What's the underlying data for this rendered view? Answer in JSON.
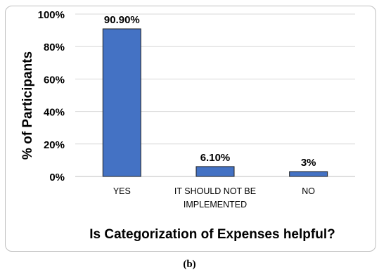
{
  "chart_data": {
    "type": "bar",
    "categories": [
      [
        "YES"
      ],
      [
        "IT SHOULD NOT BE",
        "IMPLEMENTED"
      ],
      [
        "NO"
      ]
    ],
    "values": [
      90.9,
      6.1,
      3
    ],
    "data_labels": [
      "90.90%",
      "6.10%",
      "3%"
    ],
    "ylabel": "% of Participants",
    "xlabel": "Is Categorization of Expenses helpful?",
    "ylim": [
      0,
      100
    ],
    "yticks": [
      0,
      20,
      40,
      60,
      80,
      100
    ],
    "ytick_labels": [
      "0%",
      "20%",
      "40%",
      "60%",
      "80%",
      "100%"
    ],
    "grid": true,
    "bar_color": "#4472c4",
    "bar_edge_color": "#1f1f1f",
    "grid_color": "#d9d9d9"
  },
  "caption": "(b)"
}
